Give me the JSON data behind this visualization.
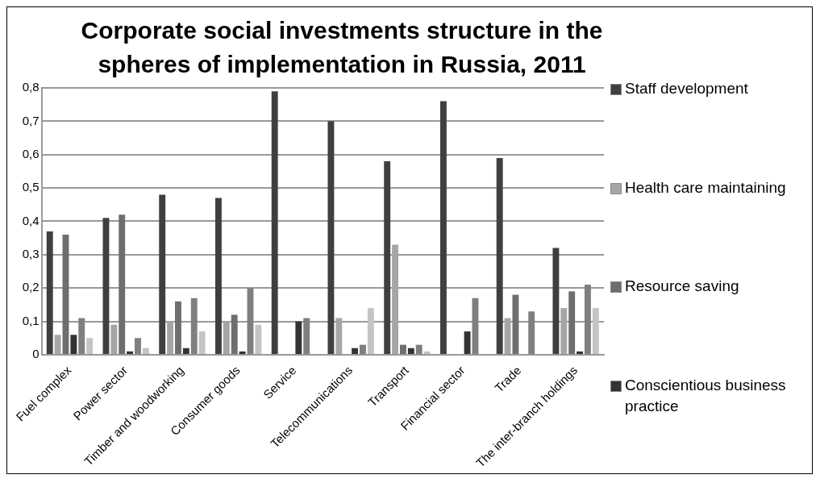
{
  "chart_data": {
    "type": "bar",
    "title": "Corporate social investments structure in the spheres of implementation in Russia, 2011",
    "categories": [
      "Fuel complex",
      "Power sector",
      "Timber and woodworking",
      "Consumer goods",
      "Service",
      "Telecommunications",
      "Transport",
      "Financial sector",
      "Trade",
      "The inter-branch holdings"
    ],
    "series": [
      {
        "name": "Staff development",
        "color": "#3f3f3f",
        "values": [
          0.37,
          0.41,
          0.48,
          0.47,
          0.79,
          0.7,
          0.58,
          0.76,
          0.59,
          0.32
        ]
      },
      {
        "name": "Health care maintaining",
        "color": "#a6a6a6",
        "values": [
          0.06,
          0.09,
          0.1,
          0.1,
          0,
          0.11,
          0.33,
          0,
          0.11,
          0.14
        ]
      },
      {
        "name": "Resource saving",
        "color": "#6e6e6e",
        "values": [
          0.36,
          0.42,
          0.16,
          0.12,
          0,
          0,
          0.03,
          0,
          0.18,
          0.19
        ]
      },
      {
        "name": "Conscientious business practice",
        "color": "#333333",
        "values": [
          0.06,
          0.01,
          0.02,
          0.01,
          0.1,
          0.02,
          0.02,
          0.07,
          0,
          0.01
        ]
      },
      {
        "color": "#7f7f7f",
        "values": [
          0.11,
          0.05,
          0.17,
          0.2,
          0.11,
          0.03,
          0.03,
          0.17,
          0.13,
          0.21
        ]
      },
      {
        "color": "#c4c4c4",
        "values": [
          0.05,
          0.02,
          0.07,
          0.09,
          0,
          0.14,
          0.01,
          0,
          0,
          0.14
        ]
      }
    ],
    "ylim": [
      0,
      0.8
    ],
    "yticks": [
      {
        "value": 0,
        "label": "0"
      },
      {
        "value": 0.1,
        "label": "0,1"
      },
      {
        "value": 0.2,
        "label": "0,2"
      },
      {
        "value": 0.3,
        "label": "0,3"
      },
      {
        "value": 0.4,
        "label": "0,4"
      },
      {
        "value": 0.5,
        "label": "0,5"
      },
      {
        "value": 0.6,
        "label": "0,6"
      },
      {
        "value": 0.7,
        "label": "0,7"
      },
      {
        "value": 0.8,
        "label": "0,8"
      }
    ],
    "grid": "y",
    "legend": "right"
  }
}
